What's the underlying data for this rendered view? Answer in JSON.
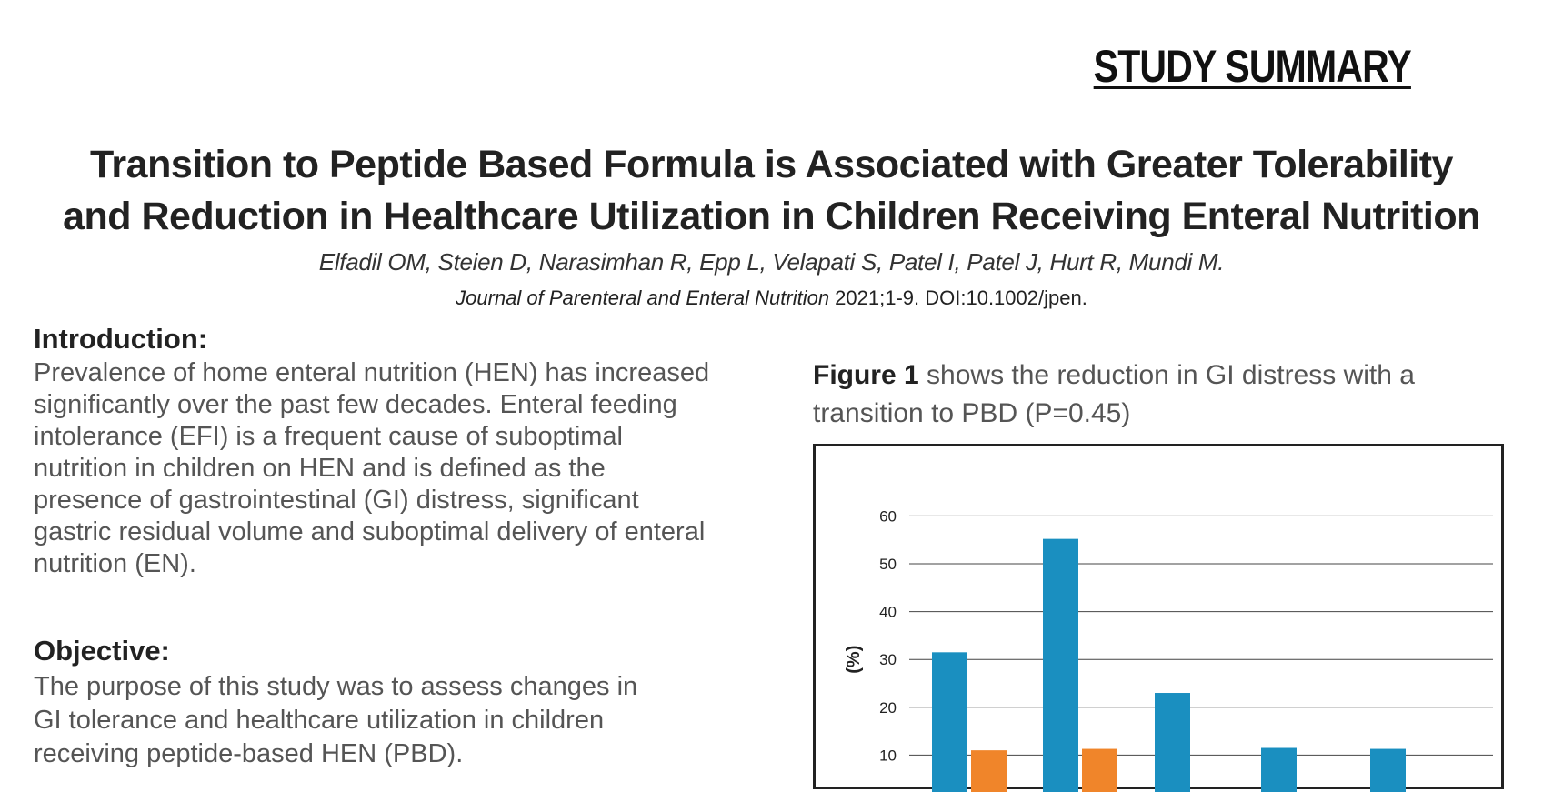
{
  "header": {
    "label": "STUDY SUMMARY"
  },
  "article": {
    "title_line1": "Transition to Peptide Based Formula is Associated with Greater Tolerability",
    "title_line2": "and Reduction in Healthcare Utilization in Children Receiving Enteral Nutrition",
    "authors": "Elfadil OM, Steien D, Narasimhan R, Epp L, Velapati S, Patel I, Patel J, Hurt R, Mundi M.",
    "journal_name": "Journal of Parenteral and Enteral Nutrition",
    "journal_citation": " 2021;1-9. DOI:10.1002/jpen."
  },
  "introduction": {
    "heading": "Introduction:",
    "lines": [
      "Prevalence of home enteral nutrition (HEN) has increased",
      "significantly over the past few decades. Enteral feeding",
      "intolerance (EFI) is a frequent cause of suboptimal",
      "nutrition in children on HEN and is defined as the",
      "presence of gastrointestinal (GI) distress, significant",
      "gastric residual volume and suboptimal delivery of enteral",
      "nutrition (EN)."
    ]
  },
  "objective": {
    "heading": "Objective:",
    "lines": [
      "The purpose of this study was to assess changes in",
      "GI tolerance and healthcare utilization in children",
      "receiving peptide-based HEN (PBD)."
    ]
  },
  "figure": {
    "caption_bold": "Figure 1",
    "caption_line1": " shows the reduction in GI distress with a",
    "caption_line2": "transition to PBD (P=0.45)"
  },
  "chart_data": {
    "type": "bar",
    "ylabel": "(%)",
    "ylim": [
      0,
      60
    ],
    "yticks": [
      10,
      20,
      30,
      40,
      50,
      60
    ],
    "grid": true,
    "colors": {
      "series_1": "#1a8fc0",
      "series_2": "#f0852a"
    },
    "series": [
      {
        "values": [
          31.5,
          55.2,
          23.0,
          11.5,
          11.3
        ]
      },
      {
        "values": [
          11.0,
          11.3,
          null,
          null,
          null
        ]
      }
    ]
  }
}
